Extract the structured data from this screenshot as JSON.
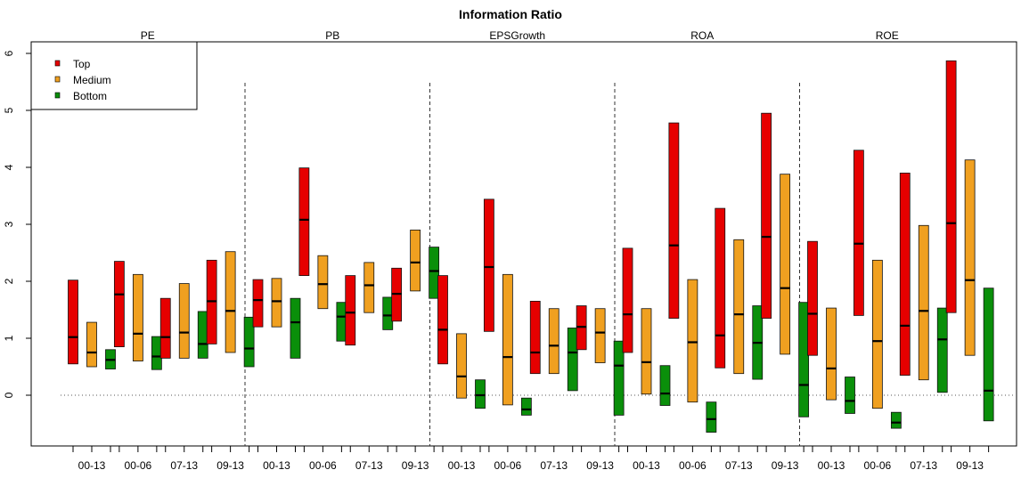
{
  "chart_data": {
    "type": "boxplot",
    "title": "Information Ratio",
    "xlabel": "",
    "ylabel": "",
    "ylim": [
      -0.85,
      6.2
    ],
    "yticks": [
      0,
      1,
      2,
      3,
      4,
      5,
      6
    ],
    "reference_line": 0,
    "legend": {
      "placement": "top-left",
      "entries": [
        {
          "name": "Top",
          "color": "#e60000"
        },
        {
          "name": "Medium",
          "color": "#f0a020"
        },
        {
          "name": "Bottom",
          "color": "#0a8f0a"
        }
      ]
    },
    "periods": [
      "00-13",
      "00-06",
      "07-13",
      "09-13"
    ],
    "panels": [
      {
        "name": "PE",
        "groups": [
          {
            "period": "00-13",
            "Top": [
              0.55,
              1.02,
              2.02
            ],
            "Medium": [
              0.5,
              0.75,
              1.28
            ],
            "Bottom": [
              0.46,
              0.62,
              0.8
            ]
          },
          {
            "period": "00-06",
            "Top": [
              0.85,
              1.77,
              2.35
            ],
            "Medium": [
              0.6,
              1.08,
              2.12
            ],
            "Bottom": [
              0.45,
              0.68,
              1.03
            ]
          },
          {
            "period": "07-13",
            "Top": [
              0.65,
              1.02,
              1.7
            ],
            "Medium": [
              0.65,
              1.1,
              1.96
            ],
            "Bottom": [
              0.65,
              0.9,
              1.47
            ]
          },
          {
            "period": "09-13",
            "Top": [
              0.9,
              1.65,
              2.37
            ],
            "Medium": [
              0.75,
              1.48,
              2.52
            ],
            "Bottom": [
              0.5,
              0.82,
              1.37
            ]
          }
        ]
      },
      {
        "name": "PB",
        "groups": [
          {
            "period": "00-13",
            "Top": [
              1.2,
              1.67,
              2.03
            ],
            "Medium": [
              1.2,
              1.65,
              2.05
            ],
            "Bottom": [
              0.65,
              1.28,
              1.7
            ]
          },
          {
            "period": "00-06",
            "Top": [
              2.1,
              3.08,
              3.99
            ],
            "Medium": [
              1.52,
              1.95,
              2.45
            ],
            "Bottom": [
              0.95,
              1.38,
              1.63
            ]
          },
          {
            "period": "07-13",
            "Top": [
              0.88,
              1.45,
              2.1
            ],
            "Medium": [
              1.45,
              1.93,
              2.33
            ],
            "Bottom": [
              1.15,
              1.4,
              1.72
            ]
          },
          {
            "period": "09-13",
            "Top": [
              1.3,
              1.78,
              2.23
            ],
            "Medium": [
              1.83,
              2.33,
              2.9
            ],
            "Bottom": [
              1.7,
              2.18,
              2.6
            ]
          }
        ]
      },
      {
        "name": "EPSGrowth",
        "groups": [
          {
            "period": "00-13",
            "Top": [
              0.55,
              1.15,
              2.1
            ],
            "Medium": [
              -0.05,
              0.33,
              1.08
            ],
            "Bottom": [
              -0.23,
              0.0,
              0.27
            ]
          },
          {
            "period": "00-06",
            "Top": [
              1.12,
              2.25,
              3.44
            ],
            "Medium": [
              -0.17,
              0.67,
              2.12
            ],
            "Bottom": [
              -0.35,
              -0.25,
              -0.05
            ]
          },
          {
            "period": "07-13",
            "Top": [
              0.38,
              0.75,
              1.65
            ],
            "Medium": [
              0.38,
              0.87,
              1.52
            ],
            "Bottom": [
              0.08,
              0.75,
              1.18
            ]
          },
          {
            "period": "09-13",
            "Top": [
              0.8,
              1.2,
              1.57
            ],
            "Medium": [
              0.57,
              1.1,
              1.52
            ],
            "Bottom": [
              -0.35,
              0.52,
              0.95
            ]
          }
        ]
      },
      {
        "name": "ROA",
        "groups": [
          {
            "period": "00-13",
            "Top": [
              0.75,
              1.42,
              2.58
            ],
            "Medium": [
              0.02,
              0.58,
              1.52
            ],
            "Bottom": [
              -0.18,
              0.03,
              0.52
            ]
          },
          {
            "period": "00-06",
            "Top": [
              1.35,
              2.63,
              4.78
            ],
            "Medium": [
              -0.12,
              0.93,
              2.03
            ],
            "Bottom": [
              -0.65,
              -0.42,
              -0.12
            ]
          },
          {
            "period": "07-13",
            "Top": [
              0.48,
              1.05,
              3.28
            ],
            "Medium": [
              0.38,
              1.42,
              2.73
            ],
            "Bottom": [
              0.28,
              0.92,
              1.57
            ]
          },
          {
            "period": "09-13",
            "Top": [
              1.35,
              2.78,
              4.95
            ],
            "Medium": [
              0.72,
              1.88,
              3.88
            ],
            "Bottom": [
              -0.38,
              0.18,
              1.63
            ]
          }
        ]
      },
      {
        "name": "ROE",
        "groups": [
          {
            "period": "00-13",
            "Top": [
              0.7,
              1.43,
              2.7
            ],
            "Medium": [
              -0.08,
              0.47,
              1.53
            ],
            "Bottom": [
              -0.32,
              -0.1,
              0.32
            ]
          },
          {
            "period": "00-06",
            "Top": [
              1.4,
              2.66,
              4.3
            ],
            "Medium": [
              -0.23,
              0.95,
              2.37
            ],
            "Bottom": [
              -0.58,
              -0.48,
              -0.3
            ]
          },
          {
            "period": "07-13",
            "Top": [
              0.35,
              1.22,
              3.9
            ],
            "Medium": [
              0.27,
              1.48,
              2.98
            ],
            "Bottom": [
              0.05,
              0.98,
              1.53
            ]
          },
          {
            "period": "09-13",
            "Top": [
              1.45,
              3.02,
              5.87
            ],
            "Medium": [
              0.7,
              2.02,
              4.13
            ],
            "Bottom": [
              -0.45,
              0.08,
              1.88
            ]
          }
        ]
      }
    ]
  }
}
